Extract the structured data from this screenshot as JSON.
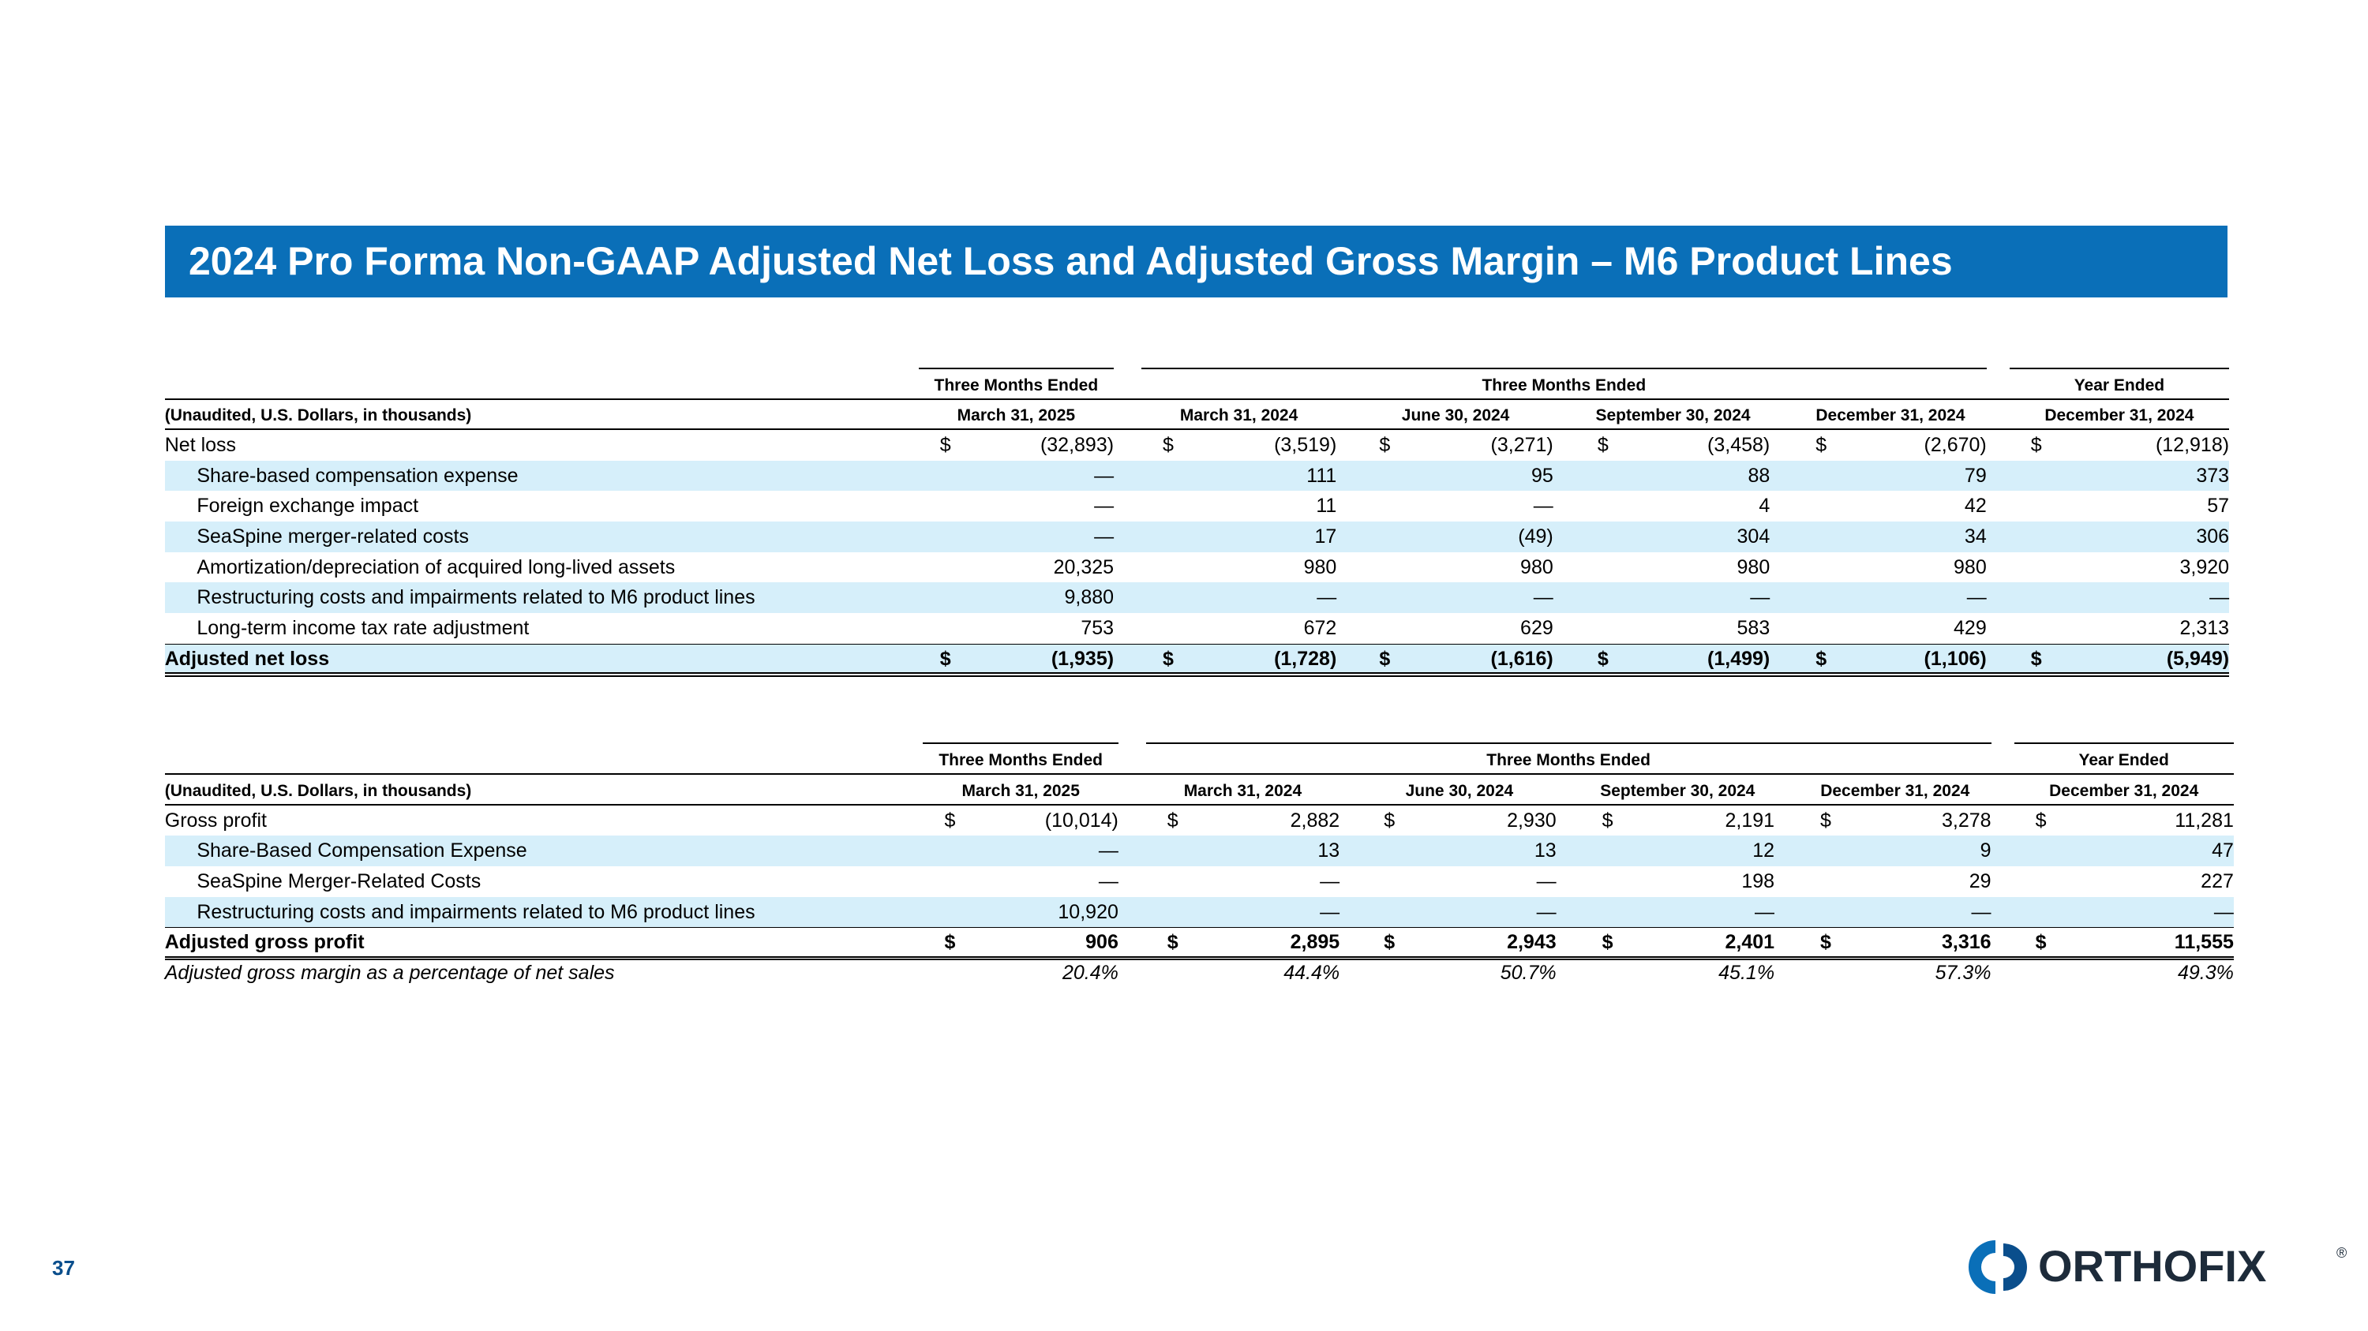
{
  "header": {
    "title": "2024 Pro Forma Non-GAAP Adjusted Net Loss and Adjusted Gross Margin – M6 Product Lines"
  },
  "tables": [
    {
      "group_headers": [
        "Three Months Ended",
        "Three Months Ended",
        "Year Ended"
      ],
      "unit_note": "(Unaudited, U.S. Dollars, in thousands)",
      "column_headers": [
        "March 31, 2025",
        "March 31, 2024",
        "June 30, 2024",
        "September 30, 2024",
        "December 31, 2024",
        "December 31, 2024"
      ],
      "rows": [
        {
          "label": "Net loss",
          "currency": "$",
          "cells": [
            "(32,893)",
            "(3,519)",
            "(3,271)",
            "(3,458)",
            "(2,670)",
            "(12,918)"
          ]
        },
        {
          "label": "Share-based compensation expense",
          "indent": true,
          "shaded": true,
          "cells": [
            "—",
            "111",
            "95",
            "88",
            "79",
            "373"
          ]
        },
        {
          "label": "Foreign exchange impact",
          "indent": true,
          "cells": [
            "—",
            "11",
            "—",
            "4",
            "42",
            "57"
          ]
        },
        {
          "label": "SeaSpine merger-related costs",
          "indent": true,
          "shaded": true,
          "cells": [
            "—",
            "17",
            "(49)",
            "304",
            "34",
            "306"
          ]
        },
        {
          "label": "Amortization/depreciation of acquired long-lived assets",
          "indent": true,
          "cells": [
            "20,325",
            "980",
            "980",
            "980",
            "980",
            "3,920"
          ]
        },
        {
          "label": "Restructuring costs and impairments related to M6 product lines",
          "indent": true,
          "shaded": true,
          "cells": [
            "9,880",
            "—",
            "—",
            "—",
            "—",
            "—"
          ]
        },
        {
          "label": "Long-term income tax rate adjustment",
          "indent": true,
          "cells": [
            "753",
            "672",
            "629",
            "583",
            "429",
            "2,313"
          ]
        },
        {
          "label": "Adjusted net loss",
          "bold": true,
          "total": true,
          "shaded": true,
          "currency": "$",
          "cells": [
            "(1,935)",
            "(1,728)",
            "(1,616)",
            "(1,499)",
            "(1,106)",
            "(5,949)"
          ]
        }
      ]
    },
    {
      "group_headers": [
        "Three Months Ended",
        "Three Months Ended",
        "Year Ended"
      ],
      "unit_note": "(Unaudited, U.S. Dollars, in thousands)",
      "column_headers": [
        "March 31, 2025",
        "March 31, 2024",
        "June 30, 2024",
        "September 30, 2024",
        "December 31, 2024",
        "December 31, 2024"
      ],
      "rows": [
        {
          "label": "Gross profit",
          "currency": "$",
          "cells": [
            "(10,014)",
            "2,882",
            "2,930",
            "2,191",
            "3,278",
            "11,281"
          ]
        },
        {
          "label": "Share-Based Compensation Expense",
          "indent": true,
          "shaded": true,
          "cells": [
            "—",
            "13",
            "13",
            "12",
            "9",
            "47"
          ]
        },
        {
          "label": "SeaSpine Merger-Related Costs",
          "indent": true,
          "cells": [
            "—",
            "—",
            "—",
            "198",
            "29",
            "227"
          ]
        },
        {
          "label": "Restructuring costs and impairments related to M6 product lines",
          "indent": true,
          "shaded": true,
          "cells": [
            "10,920",
            "—",
            "—",
            "—",
            "—",
            "—"
          ]
        },
        {
          "label": "Adjusted gross profit",
          "bold": true,
          "total": true,
          "currency": "$",
          "cells": [
            "906",
            "2,895",
            "2,943",
            "2,401",
            "3,316",
            "11,555"
          ]
        },
        {
          "label": "Adjusted gross margin as a percentage of net sales",
          "italic": true,
          "cells": [
            "20.4%",
            "44.4%",
            "50.7%",
            "45.1%",
            "57.3%",
            "49.3%"
          ]
        }
      ]
    }
  ],
  "footer": {
    "page_number": "37",
    "logo": "ORTHOFIX",
    "registered": "®"
  }
}
